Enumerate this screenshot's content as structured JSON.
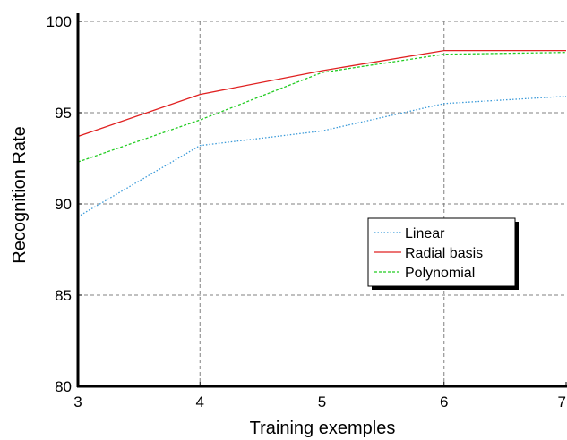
{
  "chart_data": {
    "type": "line",
    "title": "",
    "xlabel": "Training exemples",
    "ylabel": "Recognition Rate",
    "x": [
      3,
      4,
      5,
      6,
      7
    ],
    "xlim": [
      3,
      7
    ],
    "ylim": [
      80,
      100
    ],
    "xticks": [
      "3",
      "4",
      "5",
      "6",
      "7"
    ],
    "yticks": [
      "80",
      "85",
      "90",
      "95",
      "100"
    ],
    "grid": true,
    "legend_position": "center-right",
    "series": [
      {
        "name": "Linear",
        "values": [
          89.3,
          93.2,
          94.0,
          95.5,
          95.9
        ],
        "color": "#3a9ad9",
        "style": "dotted"
      },
      {
        "name": "Radial basis",
        "values": [
          93.7,
          96.0,
          97.3,
          98.4,
          98.4
        ],
        "color": "#e02020",
        "style": "solid"
      },
      {
        "name": "Polynomial",
        "values": [
          92.3,
          94.6,
          97.2,
          98.2,
          98.3
        ],
        "color": "#22cc22",
        "style": "dashed"
      }
    ]
  }
}
